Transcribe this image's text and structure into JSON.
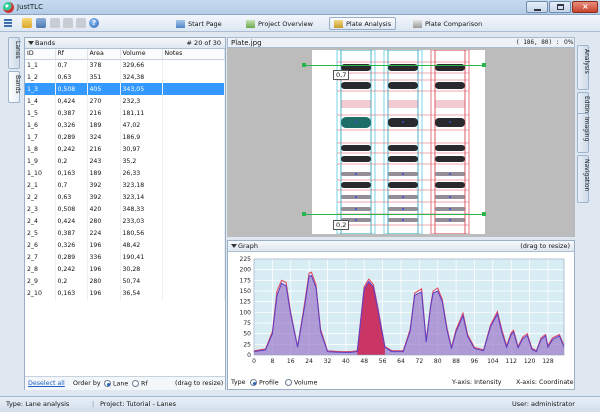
{
  "window": {
    "title": "JustTLC"
  },
  "toolbar": {
    "tabs": [
      {
        "label": "Start Page"
      },
      {
        "label": "Project Overview"
      },
      {
        "label": "Plate Analysis"
      },
      {
        "label": "Plate Comparison"
      }
    ],
    "active_tab": "Plate Analysis"
  },
  "left_tabs": {
    "lanes": "Lanes",
    "bands": "Bands"
  },
  "right_tabs": {
    "analysis": "Analysis",
    "editing": "Editing",
    "imaging": "Imaging",
    "navigation": "Navigation"
  },
  "bands": {
    "title": "Bands",
    "counter": "# 20 of 30",
    "columns": [
      "ID",
      "Rf",
      "Area",
      "Volume",
      "Notes"
    ],
    "rows": [
      [
        "1_1",
        "0,7",
        "378",
        "329,66",
        ""
      ],
      [
        "1_2",
        "0,63",
        "351",
        "324,38",
        ""
      ],
      [
        "1_3",
        "0,508",
        "405",
        "343,05",
        ""
      ],
      [
        "1_4",
        "0,424",
        "270",
        "232,3",
        ""
      ],
      [
        "1_5",
        "0,387",
        "216",
        "181,11",
        ""
      ],
      [
        "1_6",
        "0,326",
        "189",
        "47,02",
        ""
      ],
      [
        "1_7",
        "0,289",
        "324",
        "186,9",
        ""
      ],
      [
        "1_8",
        "0,242",
        "216",
        "30,97",
        ""
      ],
      [
        "1_9",
        "0,2",
        "243",
        "35,2",
        ""
      ],
      [
        "1_10",
        "0,163",
        "189",
        "26,33",
        ""
      ],
      [
        "2_1",
        "0,7",
        "392",
        "323,18",
        ""
      ],
      [
        "2_2",
        "0,63",
        "392",
        "323,14",
        ""
      ],
      [
        "2_3",
        "0,508",
        "420",
        "348,33",
        ""
      ],
      [
        "2_4",
        "0,424",
        "280",
        "233,03",
        ""
      ],
      [
        "2_5",
        "0,387",
        "224",
        "180,56",
        ""
      ],
      [
        "2_6",
        "0,326",
        "196",
        "48,42",
        ""
      ],
      [
        "2_7",
        "0,289",
        "336",
        "190,41",
        ""
      ],
      [
        "2_8",
        "0,242",
        "196",
        "30,28",
        ""
      ],
      [
        "2_9",
        "0,2",
        "280",
        "50,74",
        ""
      ],
      [
        "2_10",
        "0,163",
        "196",
        "36,54",
        ""
      ]
    ],
    "selected_row": "1_3",
    "deselect_all": "Deselect all",
    "order_by_label": "Order by",
    "order_lane": "Lane",
    "order_rf": "Rf",
    "order_selected": "Lane",
    "resize_hint": "(drag to resize)"
  },
  "plate": {
    "filename": "Plate.jpg",
    "coords": "( 186, 80) :",
    "zoom": "0%",
    "markers": {
      "top": "0,7",
      "bottom": "0,2"
    }
  },
  "graph": {
    "title": "Graph",
    "resize_hint": "(drag to resize)",
    "type_label": "Type",
    "type_profile": "Profile",
    "type_volume": "Volume",
    "type_selected": "Profile",
    "yaxis_label": "Y-axis: Intensity",
    "xaxis_label": "X-axis: Coordinate",
    "colors": {
      "lane1": "#e0405a",
      "lane2": "#5a3fc8",
      "fill": "#9c79c9",
      "selected": "#cc2a58",
      "bg": "#d7ecf3"
    }
  },
  "chart_data": {
    "type": "area",
    "x_ticks": [
      0,
      8,
      16,
      24,
      32,
      40,
      48,
      56,
      64,
      72,
      80,
      88,
      96,
      104,
      112,
      120,
      128
    ],
    "y_ticks": [
      0,
      25,
      50,
      75,
      100,
      125,
      150,
      175,
      200,
      225
    ],
    "xlim": [
      0,
      135
    ],
    "ylim": [
      0,
      225
    ],
    "grid": true,
    "series": [
      {
        "x": [
          0,
          5,
          8,
          10,
          12,
          14,
          16,
          19,
          22,
          24,
          25,
          27,
          29,
          32,
          38,
          42,
          45,
          48,
          50,
          52,
          54,
          57,
          60,
          65,
          68,
          70,
          73,
          75,
          77,
          78,
          80,
          82,
          84,
          86,
          88,
          91,
          93,
          96,
          100,
          103,
          106,
          108,
          110,
          112,
          113,
          115,
          117,
          119,
          121,
          123,
          125,
          127,
          128,
          130,
          133,
          135
        ],
        "values": [
          10,
          14,
          55,
          150,
          175,
          170,
          100,
          20,
          120,
          192,
          194,
          165,
          60,
          10,
          8,
          8,
          10,
          160,
          178,
          165,
          110,
          20,
          10,
          10,
          60,
          145,
          155,
          35,
          120,
          150,
          157,
          130,
          65,
          18,
          60,
          98,
          48,
          18,
          12,
          70,
          102,
          58,
          22,
          52,
          58,
          20,
          42,
          50,
          16,
          10,
          40,
          48,
          22,
          40,
          48,
          22
        ]
      },
      {
        "x": [
          0,
          5,
          8,
          10,
          12,
          14,
          16,
          19,
          22,
          24,
          25,
          27,
          29,
          32,
          38,
          42,
          45,
          48,
          50,
          52,
          54,
          57,
          60,
          65,
          68,
          70,
          73,
          75,
          77,
          78,
          80,
          82,
          84,
          86,
          88,
          91,
          93,
          96,
          100,
          103,
          106,
          108,
          110,
          112,
          113,
          115,
          117,
          119,
          121,
          123,
          125,
          127,
          128,
          130,
          133,
          135
        ],
        "values": [
          8,
          12,
          50,
          140,
          168,
          162,
          95,
          18,
          112,
          185,
          186,
          158,
          55,
          8,
          6,
          6,
          8,
          155,
          172,
          160,
          105,
          18,
          8,
          8,
          55,
          140,
          148,
          30,
          115,
          145,
          150,
          125,
          60,
          15,
          55,
          92,
          44,
          15,
          10,
          66,
          96,
          52,
          18,
          48,
          54,
          17,
          38,
          46,
          13,
          8,
          36,
          45,
          18,
          36,
          45,
          18
        ]
      }
    ],
    "highlight": {
      "x_from": 45,
      "x_to": 57
    }
  }
}
